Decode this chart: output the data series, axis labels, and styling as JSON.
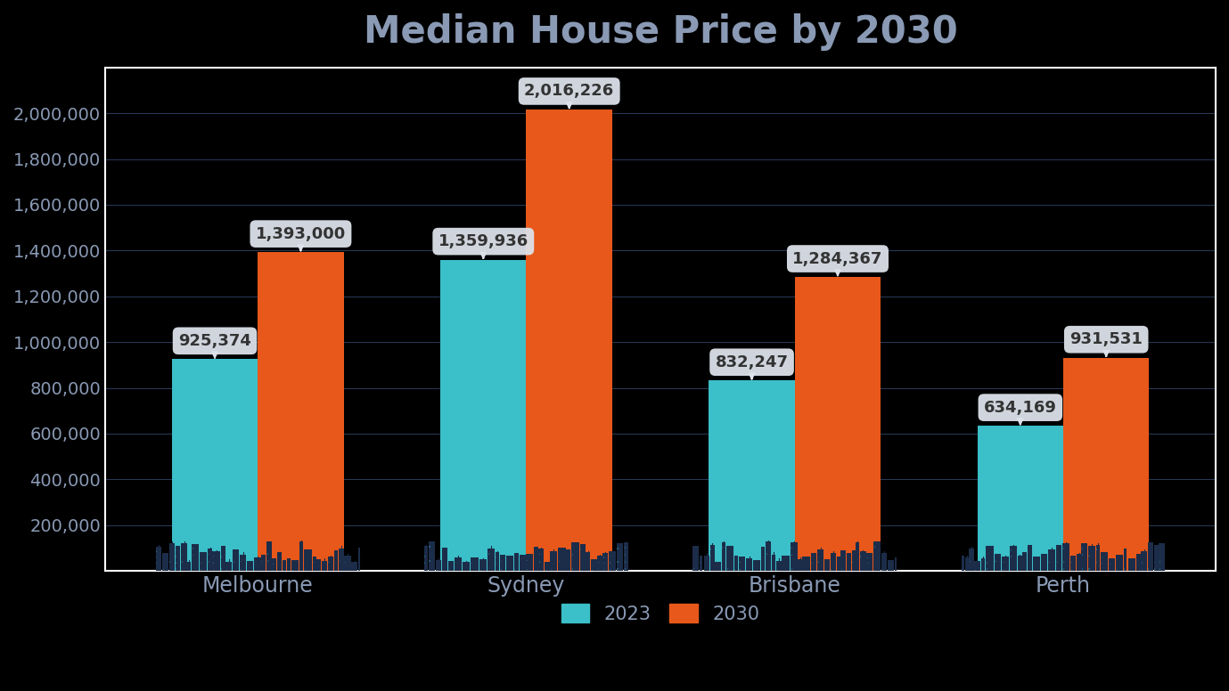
{
  "title": "Median House Price by 2030",
  "categories": [
    "Melbourne",
    "Sydney",
    "Brisbane",
    "Perth"
  ],
  "values_2023": [
    925374,
    1359936,
    832247,
    634169
  ],
  "values_2030": [
    1393000,
    2016226,
    1284367,
    931531
  ],
  "color_2023": "#3bbfc8",
  "color_2030": "#e8581a",
  "background_color": "#000000",
  "plot_bg_color": "#000000",
  "text_color": "#8a9ab5",
  "title_color": "#8a9ab5",
  "grid_color": "#2a3a5a",
  "label_bg_color": "#dde2ea",
  "label_text_color": "#333333",
  "border_color": "#ffffff",
  "city_color": "#1c2d4a",
  "ylim": [
    0,
    2200000
  ],
  "yticks": [
    200000,
    400000,
    600000,
    800000,
    1000000,
    1200000,
    1400000,
    1600000,
    1800000,
    2000000
  ],
  "bar_width": 0.32,
  "legend_labels": [
    "2023",
    "2030"
  ]
}
